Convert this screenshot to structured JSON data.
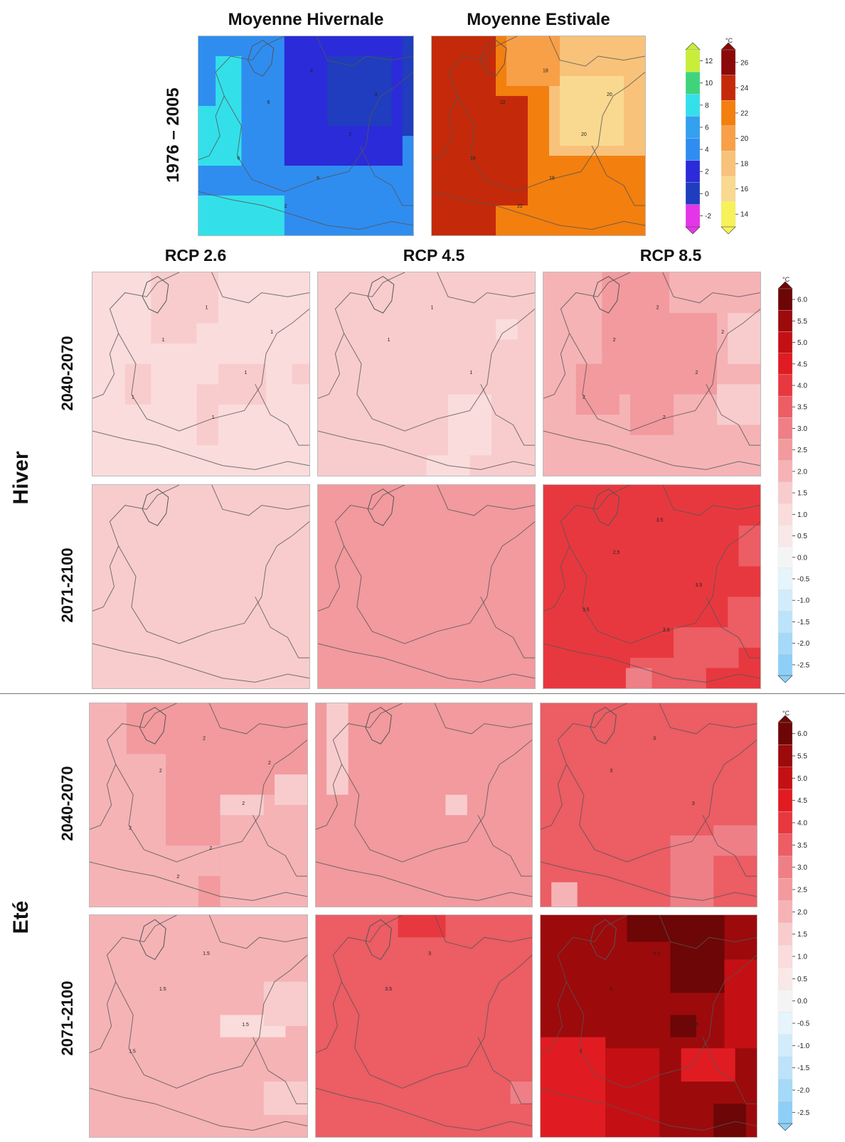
{
  "top_titles": {
    "winter": "Moyenne Hivernale",
    "summer": "Moyenne Estivale"
  },
  "baseline_period": "1976 – 2005",
  "scenarios": [
    "RCP 2.6",
    "RCP 4.5",
    "RCP 8.5"
  ],
  "seasons": {
    "winter": "Hiver",
    "summer": "Eté"
  },
  "periods": [
    "2040-2070",
    "2071-2100"
  ],
  "unit": "°C",
  "colors": {
    "baseline_winter": {
      "-2": "#e535e8",
      "0": "#1f3dbe",
      "2": "#2b2bd9",
      "4": "#2f8df0",
      "6": "#33a0f0",
      "8": "#33e0ea",
      "10": "#3fd47c",
      "12": "#c8ee3a"
    },
    "baseline_summer": {
      "14": "#f7f25a",
      "16": "#f9d98f",
      "18": "#f8c27a",
      "20": "#f7a048",
      "22": "#f37f0e",
      "24": "#c42a0a",
      "26": "#8a0a0a"
    },
    "anomaly": {
      "-2.5": "#8ecff7",
      "-2.0": "#a4d9f8",
      "-1.5": "#bce3f9",
      "-1.0": "#d2ecfa",
      "-0.5": "#e6f4fb",
      "0.0": "#f4f4f4",
      "0.5": "#f9e8e8",
      "1.0": "#fadcdc",
      "1.5": "#f8cccd",
      "2.0": "#f5b3b6",
      "2.5": "#f29a9e",
      "3.0": "#ee7f86",
      "3.5": "#ec5d64",
      "4.0": "#e8383f",
      "4.5": "#e01c22",
      "5.0": "#c41014",
      "5.5": "#9c0a0c",
      "6.0": "#6d0606"
    }
  },
  "colorbar_baseline_winter": {
    "ticks": [
      "12",
      "10",
      "8",
      "6",
      "4",
      "2",
      "0",
      "-2"
    ]
  },
  "colorbar_baseline_summer": {
    "ticks": [
      "26",
      "24",
      "22",
      "20",
      "18",
      "16",
      "14"
    ]
  },
  "colorbar_anomaly": {
    "ticks": [
      "6.0",
      "5.5",
      "5.0",
      "4.5",
      "4.0",
      "3.5",
      "3.0",
      "2.5",
      "2.0",
      "1.5",
      "1.0",
      "0.5",
      "0.0",
      "-0.5",
      "-1.0",
      "-1.5",
      "-2.0",
      "-2.5"
    ]
  },
  "maps": {
    "baseline_winter": {
      "base": "4",
      "overlays": [
        {
          "c": "8",
          "r": [
            0.0,
            0.35,
            0.2,
            0.65
          ]
        },
        {
          "c": "8",
          "r": [
            0.08,
            0.1,
            0.2,
            0.6
          ]
        },
        {
          "c": "8",
          "r": [
            0.0,
            0.8,
            0.4,
            1.0
          ]
        },
        {
          "c": "0",
          "r": [
            0.6,
            0.0,
            1.0,
            0.5
          ]
        },
        {
          "c": "2",
          "r": [
            0.4,
            0.0,
            0.95,
            0.65
          ]
        },
        {
          "c": "0",
          "r": [
            0.6,
            0.1,
            0.9,
            0.45
          ]
        }
      ],
      "contour_labels": [
        "6",
        "4",
        "2",
        "6",
        "6",
        "4",
        "2"
      ]
    },
    "baseline_summer": {
      "base": "22",
      "overlays": [
        {
          "c": "24",
          "r": [
            0.0,
            0.0,
            0.3,
            1.0
          ]
        },
        {
          "c": "24",
          "r": [
            0.3,
            0.3,
            0.45,
            0.85
          ]
        },
        {
          "c": "18",
          "r": [
            0.55,
            0.0,
            1.0,
            0.6
          ]
        },
        {
          "c": "16",
          "r": [
            0.6,
            0.2,
            0.9,
            0.55
          ]
        },
        {
          "c": "20",
          "r": [
            0.35,
            0.0,
            0.6,
            0.25
          ]
        }
      ],
      "contour_labels": [
        "22",
        "18",
        "20",
        "16",
        "18",
        "20",
        "22"
      ]
    },
    "hiver_2040-2070_rcp26": {
      "base": "1.0",
      "overlays": [
        {
          "c": "1.5",
          "r": [
            0.27,
            0.0,
            0.58,
            0.25
          ]
        },
        {
          "c": "1.5",
          "r": [
            0.27,
            0.25,
            0.48,
            0.35
          ]
        },
        {
          "c": "1.5",
          "r": [
            0.15,
            0.45,
            0.27,
            0.65
          ]
        },
        {
          "c": "1.5",
          "r": [
            0.58,
            0.45,
            0.8,
            0.65
          ]
        },
        {
          "c": "1.5",
          "r": [
            0.92,
            0.45,
            1.0,
            0.55
          ]
        },
        {
          "c": "1.5",
          "r": [
            0.48,
            0.55,
            0.58,
            0.85
          ]
        }
      ],
      "contour_labels": [
        "1",
        "1",
        "1",
        "1",
        "1",
        "1"
      ]
    },
    "hiver_2040-2070_rcp45": {
      "base": "1.5",
      "overlays": [
        {
          "c": "1.0",
          "r": [
            0.6,
            0.6,
            0.8,
            0.9
          ]
        },
        {
          "c": "1.0",
          "r": [
            0.5,
            0.9,
            0.7,
            1.0
          ]
        },
        {
          "c": "1.0",
          "r": [
            0.82,
            0.23,
            0.92,
            0.33
          ]
        }
      ],
      "contour_labels": [
        "1",
        "1",
        "1"
      ]
    },
    "hiver_2040-2070_rcp85": {
      "base": "2.0",
      "overlays": [
        {
          "c": "2.5",
          "r": [
            0.27,
            0.0,
            0.58,
            0.4
          ]
        },
        {
          "c": "2.5",
          "r": [
            0.27,
            0.2,
            0.8,
            0.6
          ]
        },
        {
          "c": "2.5",
          "r": [
            0.15,
            0.45,
            0.35,
            0.7
          ]
        },
        {
          "c": "2.5",
          "r": [
            0.4,
            0.5,
            0.6,
            0.8
          ]
        },
        {
          "c": "1.5",
          "r": [
            0.85,
            0.2,
            1.0,
            0.45
          ]
        },
        {
          "c": "1.5",
          "r": [
            0.8,
            0.55,
            1.0,
            0.75
          ]
        }
      ],
      "contour_labels": [
        "2",
        "2",
        "2",
        "2",
        "2",
        "2"
      ]
    },
    "hiver_2071-2100_rcp26": {
      "base": "1.5",
      "overlays": [],
      "contour_labels": []
    },
    "hiver_2071-2100_rcp45": {
      "base": "2.5",
      "overlays": [],
      "contour_labels": []
    },
    "hiver_2071-2100_rcp85": {
      "base": "4.0",
      "overlays": [
        {
          "c": "3.5",
          "r": [
            0.9,
            0.2,
            1.0,
            0.4
          ]
        },
        {
          "c": "3.5",
          "r": [
            0.85,
            0.55,
            1.0,
            0.8
          ]
        },
        {
          "c": "3.5",
          "r": [
            0.6,
            0.7,
            0.9,
            0.9
          ]
        },
        {
          "c": "3.5",
          "r": [
            0.4,
            0.85,
            0.75,
            1.0
          ]
        },
        {
          "c": "3.0",
          "r": [
            0.38,
            0.9,
            0.5,
            1.0
          ]
        }
      ],
      "contour_labels": [
        "2.5",
        "3.5",
        "3.5",
        "3.5",
        "3.5"
      ]
    },
    "ete_2040-2070_rcp26": {
      "base": "2.5",
      "overlays": [
        {
          "c": "2.0",
          "r": [
            0.0,
            0.0,
            0.17,
            1.0
          ]
        },
        {
          "c": "2.0",
          "r": [
            0.17,
            0.25,
            0.35,
            1.0
          ]
        },
        {
          "c": "2.0",
          "r": [
            0.35,
            0.7,
            0.6,
            1.0
          ]
        },
        {
          "c": "2.0",
          "r": [
            0.6,
            0.45,
            1.0,
            1.0
          ]
        },
        {
          "c": "1.5",
          "r": [
            0.6,
            0.45,
            0.8,
            0.55
          ]
        },
        {
          "c": "1.5",
          "r": [
            0.85,
            0.35,
            1.0,
            0.5
          ]
        },
        {
          "c": "2.5",
          "r": [
            0.5,
            0.85,
            0.6,
            1.0
          ]
        }
      ],
      "contour_labels": [
        "2",
        "2",
        "2",
        "2",
        "2",
        "2",
        "2"
      ]
    },
    "ete_2040-2070_rcp45": {
      "base": "2.5",
      "overlays": [
        {
          "c": "1.5",
          "r": [
            0.05,
            0.0,
            0.15,
            0.45
          ]
        },
        {
          "c": "1.5",
          "r": [
            0.6,
            0.45,
            0.7,
            0.55
          ]
        }
      ],
      "contour_labels": []
    },
    "ete_2040-2070_rcp85": {
      "base": "3.5",
      "overlays": [
        {
          "c": "3.0",
          "r": [
            0.6,
            0.65,
            0.8,
            1.0
          ]
        },
        {
          "c": "3.0",
          "r": [
            0.8,
            0.6,
            1.0,
            0.75
          ]
        },
        {
          "c": "2.0",
          "r": [
            0.05,
            0.88,
            0.17,
            1.0
          ]
        }
      ],
      "contour_labels": [
        "3",
        "3",
        "3"
      ]
    },
    "ete_2071-2100_rcp26": {
      "base": "2.0",
      "overlays": [
        {
          "c": "1.0",
          "r": [
            0.6,
            0.45,
            0.9,
            0.55
          ]
        },
        {
          "c": "1.5",
          "r": [
            0.8,
            0.3,
            1.0,
            0.5
          ]
        },
        {
          "c": "1.5",
          "r": [
            0.8,
            0.75,
            1.0,
            0.9
          ]
        }
      ],
      "contour_labels": [
        "1.5",
        "1.5",
        "1.5",
        "1.5"
      ]
    },
    "ete_2071-2100_rcp45": {
      "base": "3.5",
      "overlays": [
        {
          "c": "4.0",
          "r": [
            0.38,
            0.0,
            0.6,
            0.1
          ]
        },
        {
          "c": "3.0",
          "r": [
            0.9,
            0.75,
            1.0,
            0.85
          ]
        }
      ],
      "contour_labels": [
        "3.5",
        "3"
      ]
    },
    "ete_2071-2100_rcp85": {
      "base": "5.5",
      "overlays": [
        {
          "c": "6.0",
          "r": [
            0.4,
            0.0,
            0.72,
            0.12
          ]
        },
        {
          "c": "6.0",
          "r": [
            0.6,
            0.0,
            0.85,
            0.35
          ]
        },
        {
          "c": "5.0",
          "r": [
            0.85,
            0.2,
            1.0,
            0.6
          ]
        },
        {
          "c": "4.5",
          "r": [
            0.0,
            0.55,
            0.3,
            1.0
          ]
        },
        {
          "c": "5.0",
          "r": [
            0.3,
            0.6,
            0.55,
            1.0
          ]
        },
        {
          "c": "6.0",
          "r": [
            0.6,
            0.45,
            0.72,
            0.55
          ]
        },
        {
          "c": "4.5",
          "r": [
            0.65,
            0.6,
            0.9,
            0.75
          ]
        },
        {
          "c": "6.0",
          "r": [
            0.8,
            0.85,
            0.95,
            1.0
          ]
        }
      ],
      "contour_labels": [
        "5",
        "5.5",
        "4.5",
        "5"
      ]
    }
  }
}
